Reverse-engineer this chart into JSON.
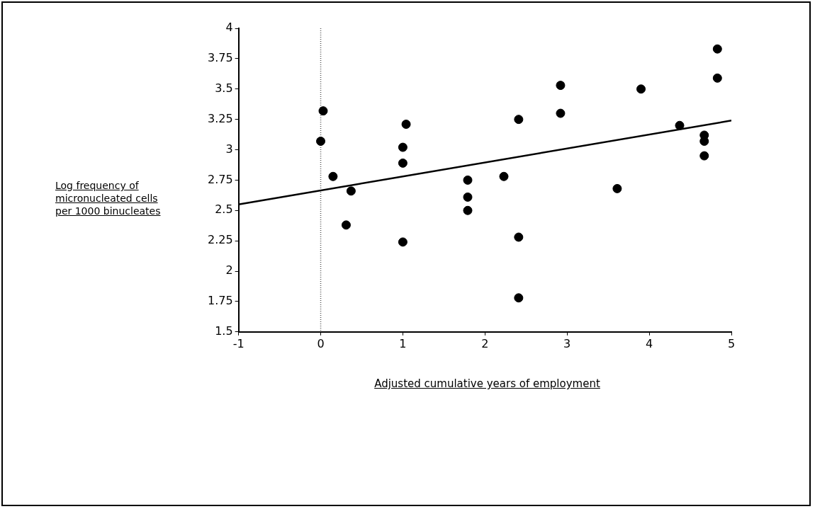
{
  "chart_data": {
    "type": "scatter",
    "xlabel": "Adjusted cumulative years of employment",
    "ylabel": "Log frequency of\nmicronucleated cells\nper 1000 binucleates",
    "xlim": [
      -1,
      5
    ],
    "xticks": [
      -1,
      0,
      1,
      2,
      3,
      4,
      5
    ],
    "ylim": [
      1.5,
      4
    ],
    "yticks": [
      1.5,
      1.75,
      2,
      2.25,
      2.5,
      2.75,
      3,
      3.25,
      3.5,
      3.75,
      4
    ],
    "grid": false,
    "legend": false,
    "marker": "circle",
    "series": [
      {
        "type": "scatter",
        "color": "#000000",
        "x": [
          0.03,
          0,
          0.15,
          0.37,
          0.31,
          1.04,
          1.0,
          1.0,
          1.0,
          1.79,
          1.79,
          1.79,
          2.23,
          2.41,
          2.41,
          2.41,
          2.92,
          2.92,
          3.9,
          3.61,
          4.37,
          4.67,
          4.67,
          4.67,
          4.83,
          4.83
        ],
        "values": [
          3.32,
          3.07,
          2.78,
          2.66,
          2.38,
          3.21,
          3.02,
          2.89,
          2.24,
          2.75,
          2.61,
          2.5,
          2.78,
          3.25,
          2.28,
          1.78,
          3.53,
          3.3,
          3.5,
          2.68,
          3.2,
          3.12,
          3.07,
          2.95,
          3.83,
          3.59
        ]
      },
      {
        "type": "line",
        "color": "#000000",
        "marker": "none",
        "x": [
          -1,
          5
        ],
        "values": [
          2.55,
          3.24
        ]
      }
    ],
    "ref_lines": [
      {
        "axis": "x",
        "value": 0,
        "color": "#555555",
        "line_style": "dotted"
      }
    ]
  }
}
